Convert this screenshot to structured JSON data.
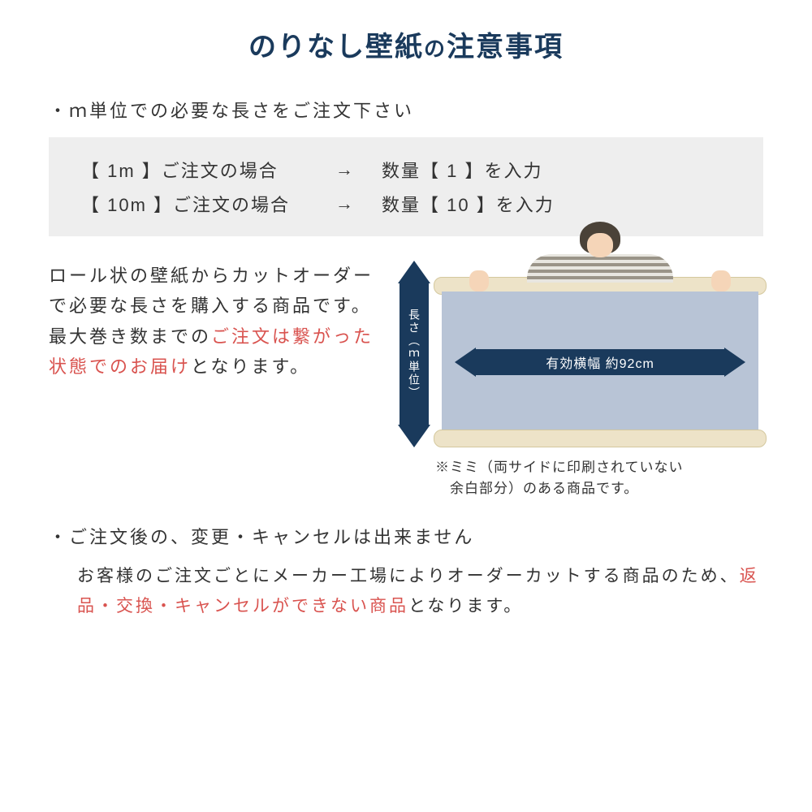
{
  "title": {
    "main": "のりなし壁紙",
    "connector": "の",
    "sub": "注意事項"
  },
  "section1": {
    "heading": "・ｍ単位での必要な長さをご注文下さい",
    "rows": [
      {
        "label": "【 1m 】ご注文の場合",
        "arrow": "→",
        "qty": "数量【 1 】を入力"
      },
      {
        "label": "【 10m 】ご注文の場合",
        "arrow": "→",
        "qty": "数量【 10 】を入力"
      }
    ]
  },
  "description": {
    "part1": "ロール状の壁紙からカットオーダーで必要な長さを購入する商品です。最大巻き数までの",
    "red": "ご注文は繋がった状態でのお届け",
    "part2": "となります。"
  },
  "diagram": {
    "vertical_label": "長さ（ｍ単位）",
    "horizontal_label": "有効横幅 約92cm",
    "note_line1": "※ミミ（両サイドに印刷されていない",
    "note_line2": "　余白部分）のある商品です。"
  },
  "section2": {
    "heading": "・ご注文後の、変更・キャンセルは出来ません",
    "text_part1": "お客様のご注文ごとにメーカー工場によりオーダーカットする商品のため、",
    "text_red": "返品・交換・キャンセルができない商品",
    "text_part2": "となります。"
  },
  "colors": {
    "title_color": "#1a3a5c",
    "arrow_color": "#1a3a5c",
    "red_color": "#d9534f",
    "box_bg": "#eeeeee",
    "paper_color": "#b8c4d6",
    "roll_color": "#ede3c8"
  }
}
